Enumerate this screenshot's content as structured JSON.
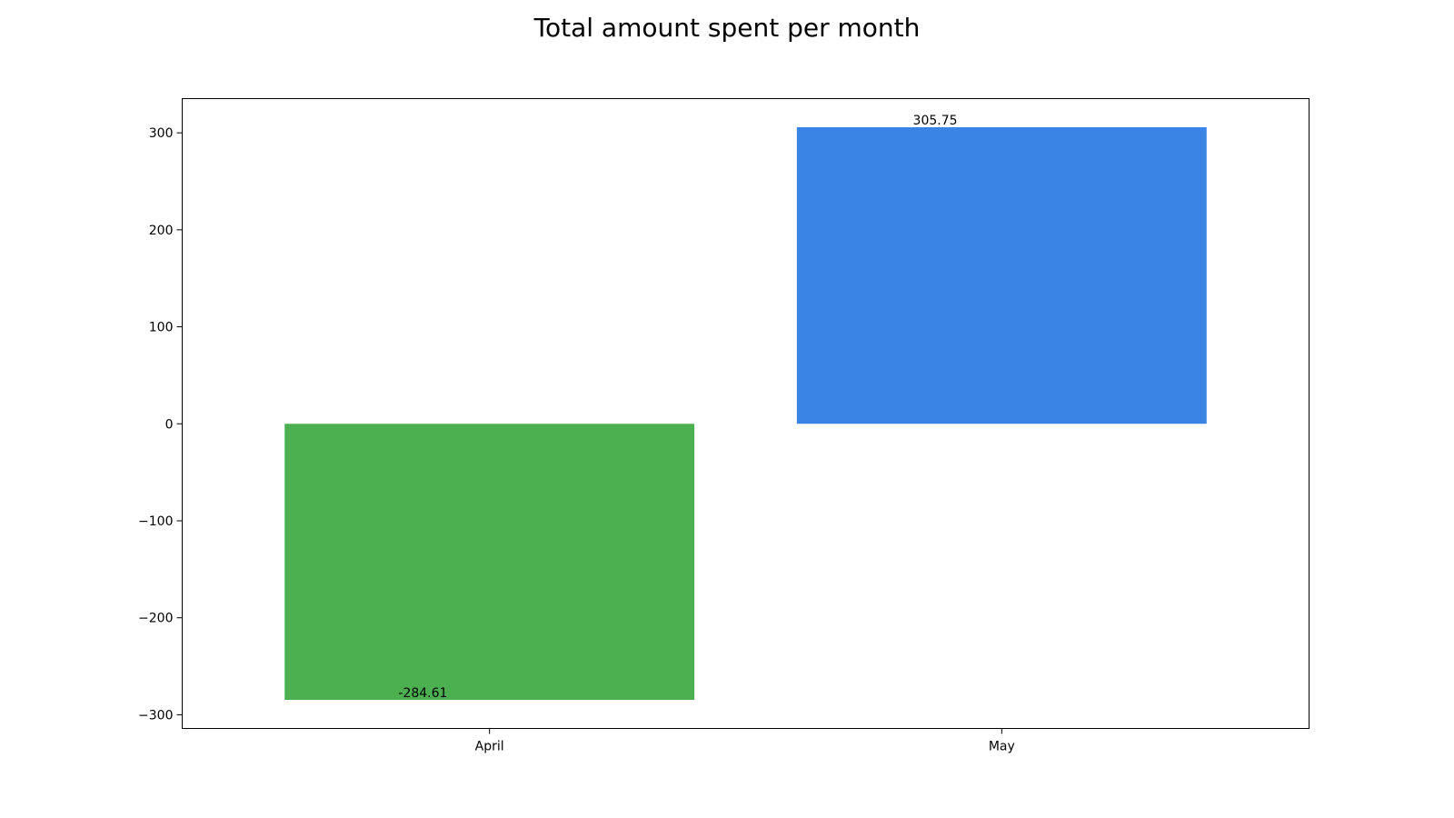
{
  "chart_data": {
    "type": "bar",
    "title": "Total amount spent per month",
    "xlabel": "",
    "ylabel": "",
    "categories": [
      "April",
      "May"
    ],
    "values": [
      -284.61,
      305.75
    ],
    "data_labels": [
      "-284.61",
      "305.75"
    ],
    "colors": [
      "#4caf50",
      "#3a84e5"
    ],
    "ylim": [
      -314.13,
      335.27
    ],
    "yticks": [
      -300,
      -200,
      -100,
      0,
      100,
      200,
      300
    ],
    "ytick_labels": [
      "−300",
      "−200",
      "−100",
      "0",
      "100",
      "200",
      "300"
    ],
    "grid": false,
    "legend": "none"
  }
}
